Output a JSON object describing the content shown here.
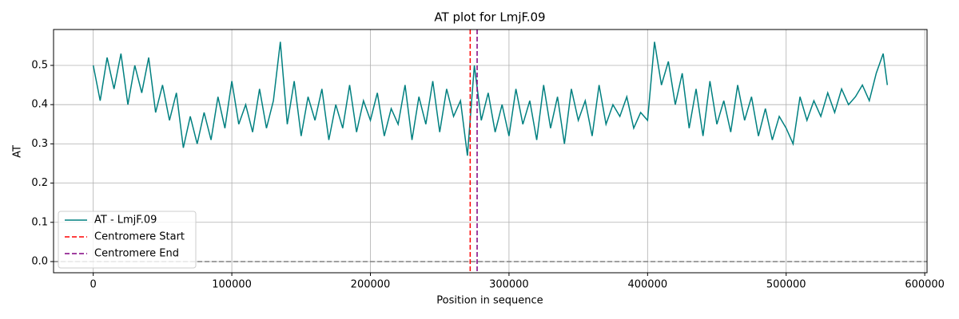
{
  "chart_data": {
    "type": "line",
    "title": "AT plot for LmjF.09",
    "xlabel": "Position in sequence",
    "ylabel": "AT",
    "x": [
      0,
      5000,
      10000,
      15000,
      20000,
      25000,
      30000,
      35000,
      40000,
      45000,
      50000,
      55000,
      60000,
      65000,
      70000,
      75000,
      80000,
      85000,
      90000,
      95000,
      100000,
      105000,
      110000,
      115000,
      120000,
      125000,
      130000,
      135000,
      140000,
      145000,
      150000,
      155000,
      160000,
      165000,
      170000,
      175000,
      180000,
      185000,
      190000,
      195000,
      200000,
      205000,
      210000,
      215000,
      220000,
      225000,
      230000,
      235000,
      240000,
      245000,
      250000,
      255000,
      260000,
      265000,
      270000,
      275000,
      280000,
      285000,
      290000,
      295000,
      300000,
      305000,
      310000,
      315000,
      320000,
      325000,
      330000,
      335000,
      340000,
      345000,
      350000,
      355000,
      360000,
      365000,
      370000,
      375000,
      380000,
      385000,
      390000,
      395000,
      400000,
      405000,
      410000,
      415000,
      420000,
      425000,
      430000,
      435000,
      440000,
      445000,
      450000,
      455000,
      460000,
      465000,
      470000,
      475000,
      480000,
      485000,
      490000,
      495000,
      500000,
      505000,
      510000,
      515000,
      520000,
      525000,
      530000,
      535000,
      540000,
      545000,
      550000,
      555000,
      560000,
      565000,
      570000,
      573000
    ],
    "series": [
      {
        "name": "AT - LmjF.09",
        "color": "#008080",
        "values": [
          0.5,
          0.41,
          0.52,
          0.44,
          0.53,
          0.4,
          0.5,
          0.43,
          0.52,
          0.38,
          0.45,
          0.36,
          0.43,
          0.29,
          0.37,
          0.3,
          0.38,
          0.31,
          0.42,
          0.34,
          0.46,
          0.35,
          0.4,
          0.33,
          0.44,
          0.34,
          0.41,
          0.56,
          0.35,
          0.46,
          0.32,
          0.42,
          0.36,
          0.44,
          0.31,
          0.4,
          0.34,
          0.45,
          0.33,
          0.41,
          0.36,
          0.43,
          0.32,
          0.39,
          0.35,
          0.45,
          0.31,
          0.42,
          0.35,
          0.46,
          0.33,
          0.44,
          0.37,
          0.41,
          0.27,
          0.5,
          0.36,
          0.43,
          0.33,
          0.4,
          0.32,
          0.44,
          0.35,
          0.41,
          0.31,
          0.45,
          0.34,
          0.42,
          0.3,
          0.44,
          0.36,
          0.41,
          0.32,
          0.45,
          0.35,
          0.4,
          0.37,
          0.42,
          0.34,
          0.38,
          0.36,
          0.56,
          0.45,
          0.51,
          0.4,
          0.48,
          0.34,
          0.44,
          0.32,
          0.46,
          0.35,
          0.41,
          0.33,
          0.45,
          0.36,
          0.42,
          0.32,
          0.39,
          0.31,
          0.37,
          0.34,
          0.3,
          0.42,
          0.36,
          0.41,
          0.37,
          0.43,
          0.38,
          0.44,
          0.4,
          0.42,
          0.45,
          0.41,
          0.48,
          0.53,
          0.45
        ]
      }
    ],
    "vlines": [
      {
        "name": "Centromere Start",
        "x": 272000,
        "color": "red"
      },
      {
        "name": "Centromere End",
        "x": 277000,
        "color": "purple"
      }
    ],
    "hlines": [
      {
        "y": 0,
        "color": "gray"
      }
    ],
    "xlim": [
      -28650,
      601650
    ],
    "ylim": [
      -0.0285,
      0.5915
    ],
    "xticks": [
      0,
      100000,
      200000,
      300000,
      400000,
      500000,
      600000
    ],
    "yticks": [
      {
        "value": 0,
        "label": "0.0"
      },
      0.1,
      0.2,
      0.3,
      0.4,
      0.5
    ],
    "grid": true,
    "legend": "lower left"
  }
}
